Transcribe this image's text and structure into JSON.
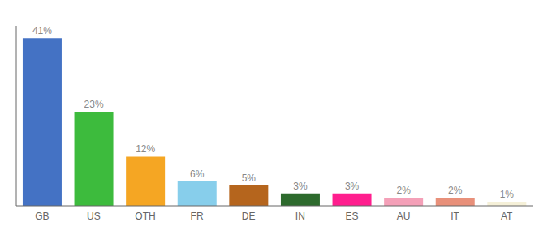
{
  "chart_data": {
    "type": "bar",
    "categories": [
      "GB",
      "US",
      "OTH",
      "FR",
      "DE",
      "IN",
      "ES",
      "AU",
      "IT",
      "AT"
    ],
    "values": [
      41,
      23,
      12,
      6,
      5,
      3,
      3,
      2,
      2,
      1
    ],
    "value_labels": [
      "41%",
      "23%",
      "12%",
      "6%",
      "5%",
      "3%",
      "3%",
      "2%",
      "2%",
      "1%"
    ],
    "colors": [
      "#4472c4",
      "#3dbb3d",
      "#f5a623",
      "#87ceeb",
      "#b5651d",
      "#2d6a2d",
      "#ff1e8e",
      "#f4a0b8",
      "#e8907a",
      "#f5f0d8"
    ],
    "ylim": [
      0,
      44
    ],
    "grid": false,
    "data_labels": true,
    "tick_labels": "x"
  }
}
